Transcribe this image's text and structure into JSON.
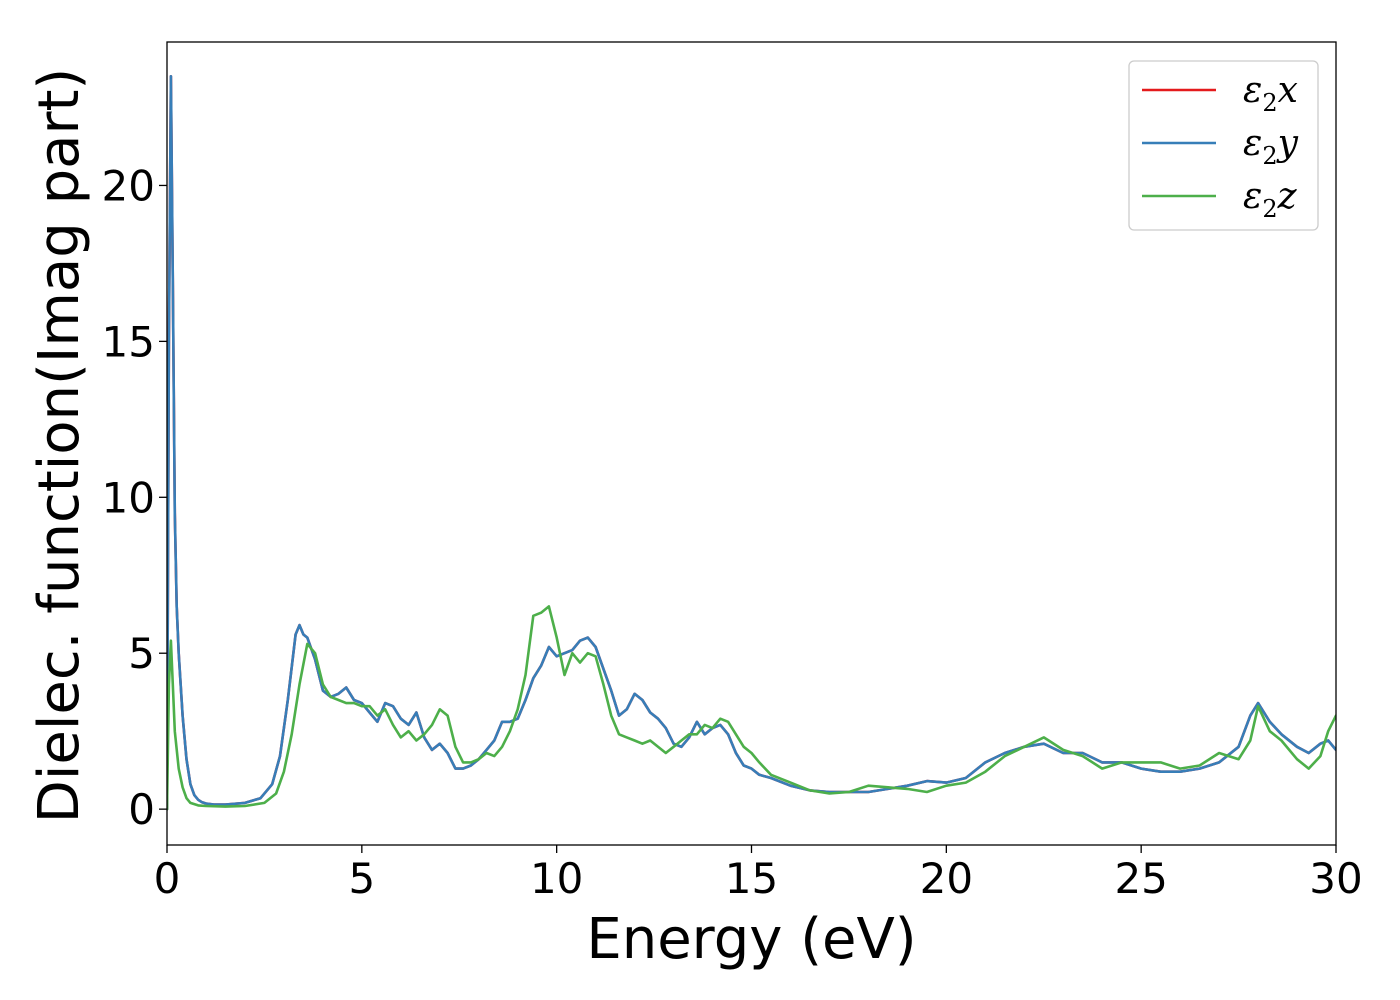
{
  "chart_data": {
    "type": "line",
    "title": "",
    "xlabel": "Energy (eV)",
    "ylabel": "Dielec. function(Imag part)",
    "xlim": [
      0,
      30
    ],
    "ylim": [
      -1.15,
      24.6
    ],
    "xticks": [
      "0",
      "5",
      "10",
      "15",
      "20",
      "25",
      "30"
    ],
    "yticks": [
      "0",
      "5",
      "10",
      "15",
      "20"
    ],
    "grid": false,
    "legend_position": "top-right",
    "series": [
      {
        "name": "x",
        "legend_symbol": "ε",
        "legend_subscript": "2",
        "legend_var": "x",
        "color": "#e41a1c",
        "x": [
          0,
          0.05,
          0.1,
          0.15,
          0.2,
          0.25,
          0.3,
          0.4,
          0.5,
          0.6,
          0.7,
          0.8,
          0.9,
          1.0,
          1.2,
          1.5,
          2.0,
          2.4,
          2.7,
          2.9,
          3.1,
          3.3,
          3.4,
          3.5,
          3.6,
          3.8,
          4.0,
          4.2,
          4.4,
          4.6,
          4.8,
          5.0,
          5.2,
          5.4,
          5.6,
          5.8,
          6.0,
          6.2,
          6.4,
          6.6,
          6.8,
          7.0,
          7.2,
          7.4,
          7.6,
          7.8,
          8.0,
          8.2,
          8.4,
          8.6,
          8.8,
          9.0,
          9.2,
          9.4,
          9.6,
          9.8,
          10.0,
          10.2,
          10.4,
          10.6,
          10.8,
          11.0,
          11.2,
          11.4,
          11.6,
          11.8,
          12.0,
          12.2,
          12.4,
          12.6,
          12.8,
          13.0,
          13.2,
          13.4,
          13.6,
          13.8,
          14.0,
          14.2,
          14.4,
          14.6,
          14.8,
          15.0,
          15.2,
          15.5,
          16.0,
          16.5,
          17.0,
          17.5,
          18.0,
          18.5,
          19.0,
          19.5,
          20.0,
          20.5,
          21.0,
          21.5,
          22.0,
          22.5,
          23.0,
          23.5,
          24.0,
          24.5,
          25.0,
          25.5,
          26.0,
          26.5,
          27.0,
          27.5,
          27.8,
          28.0,
          28.3,
          28.6,
          29.0,
          29.3,
          29.6,
          29.8,
          30.0
        ],
        "y": [
          0,
          15.0,
          23.5,
          17.0,
          9.5,
          6.5,
          5.0,
          3.0,
          1.6,
          0.8,
          0.45,
          0.3,
          0.22,
          0.18,
          0.15,
          0.15,
          0.2,
          0.35,
          0.8,
          1.7,
          3.5,
          5.6,
          5.9,
          5.6,
          5.5,
          4.8,
          3.8,
          3.6,
          3.7,
          3.9,
          3.5,
          3.4,
          3.1,
          2.8,
          3.4,
          3.3,
          2.9,
          2.7,
          3.1,
          2.3,
          1.9,
          2.1,
          1.8,
          1.3,
          1.3,
          1.4,
          1.6,
          1.9,
          2.2,
          2.8,
          2.8,
          2.9,
          3.5,
          4.2,
          4.6,
          5.2,
          4.9,
          5.0,
          5.1,
          5.4,
          5.5,
          5.2,
          4.5,
          3.8,
          3.0,
          3.2,
          3.7,
          3.5,
          3.1,
          2.9,
          2.6,
          2.1,
          2.0,
          2.3,
          2.8,
          2.4,
          2.6,
          2.7,
          2.4,
          1.8,
          1.4,
          1.3,
          1.1,
          1.0,
          0.75,
          0.6,
          0.55,
          0.55,
          0.55,
          0.65,
          0.75,
          0.9,
          0.85,
          1.0,
          1.5,
          1.8,
          2.0,
          2.1,
          1.8,
          1.8,
          1.5,
          1.5,
          1.3,
          1.2,
          1.2,
          1.3,
          1.5,
          2.0,
          3.0,
          3.4,
          2.8,
          2.4,
          2.0,
          1.8,
          2.1,
          2.2,
          1.9
        ],
        "dashed_overlaid": true
      },
      {
        "name": "y",
        "legend_symbol": "ε",
        "legend_subscript": "2",
        "legend_var": "y",
        "color": "#377eb8",
        "x": [
          0,
          0.05,
          0.1,
          0.15,
          0.2,
          0.25,
          0.3,
          0.4,
          0.5,
          0.6,
          0.7,
          0.8,
          0.9,
          1.0,
          1.2,
          1.5,
          2.0,
          2.4,
          2.7,
          2.9,
          3.1,
          3.3,
          3.4,
          3.5,
          3.6,
          3.8,
          4.0,
          4.2,
          4.4,
          4.6,
          4.8,
          5.0,
          5.2,
          5.4,
          5.6,
          5.8,
          6.0,
          6.2,
          6.4,
          6.6,
          6.8,
          7.0,
          7.2,
          7.4,
          7.6,
          7.8,
          8.0,
          8.2,
          8.4,
          8.6,
          8.8,
          9.0,
          9.2,
          9.4,
          9.6,
          9.8,
          10.0,
          10.2,
          10.4,
          10.6,
          10.8,
          11.0,
          11.2,
          11.4,
          11.6,
          11.8,
          12.0,
          12.2,
          12.4,
          12.6,
          12.8,
          13.0,
          13.2,
          13.4,
          13.6,
          13.8,
          14.0,
          14.2,
          14.4,
          14.6,
          14.8,
          15.0,
          15.2,
          15.5,
          16.0,
          16.5,
          17.0,
          17.5,
          18.0,
          18.5,
          19.0,
          19.5,
          20.0,
          20.5,
          21.0,
          21.5,
          22.0,
          22.5,
          23.0,
          23.5,
          24.0,
          24.5,
          25.0,
          25.5,
          26.0,
          26.5,
          27.0,
          27.5,
          27.8,
          28.0,
          28.3,
          28.6,
          29.0,
          29.3,
          29.6,
          29.8,
          30.0
        ],
        "y": [
          0,
          15.0,
          23.5,
          17.0,
          9.5,
          6.5,
          5.0,
          3.0,
          1.6,
          0.8,
          0.45,
          0.3,
          0.22,
          0.18,
          0.15,
          0.15,
          0.2,
          0.35,
          0.8,
          1.7,
          3.5,
          5.6,
          5.9,
          5.6,
          5.5,
          4.8,
          3.8,
          3.6,
          3.7,
          3.9,
          3.5,
          3.4,
          3.1,
          2.8,
          3.4,
          3.3,
          2.9,
          2.7,
          3.1,
          2.3,
          1.9,
          2.1,
          1.8,
          1.3,
          1.3,
          1.4,
          1.6,
          1.9,
          2.2,
          2.8,
          2.8,
          2.9,
          3.5,
          4.2,
          4.6,
          5.2,
          4.9,
          5.0,
          5.1,
          5.4,
          5.5,
          5.2,
          4.5,
          3.8,
          3.0,
          3.2,
          3.7,
          3.5,
          3.1,
          2.9,
          2.6,
          2.1,
          2.0,
          2.3,
          2.8,
          2.4,
          2.6,
          2.7,
          2.4,
          1.8,
          1.4,
          1.3,
          1.1,
          1.0,
          0.75,
          0.6,
          0.55,
          0.55,
          0.55,
          0.65,
          0.75,
          0.9,
          0.85,
          1.0,
          1.5,
          1.8,
          2.0,
          2.1,
          1.8,
          1.8,
          1.5,
          1.5,
          1.3,
          1.2,
          1.2,
          1.3,
          1.5,
          2.0,
          3.0,
          3.4,
          2.8,
          2.4,
          2.0,
          1.8,
          2.1,
          2.2,
          1.9
        ]
      },
      {
        "name": "z",
        "legend_symbol": "ε",
        "legend_subscript": "2",
        "legend_var": "z",
        "color": "#4daf4a",
        "x": [
          0,
          0.05,
          0.1,
          0.15,
          0.2,
          0.3,
          0.4,
          0.5,
          0.6,
          0.8,
          1.0,
          1.5,
          2.0,
          2.5,
          2.8,
          3.0,
          3.2,
          3.4,
          3.6,
          3.8,
          4.0,
          4.2,
          4.4,
          4.6,
          4.8,
          5.0,
          5.2,
          5.4,
          5.6,
          5.8,
          6.0,
          6.2,
          6.4,
          6.6,
          6.8,
          7.0,
          7.2,
          7.4,
          7.6,
          7.8,
          8.0,
          8.2,
          8.4,
          8.6,
          8.8,
          9.0,
          9.2,
          9.4,
          9.6,
          9.8,
          10.0,
          10.2,
          10.4,
          10.6,
          10.8,
          11.0,
          11.2,
          11.4,
          11.6,
          11.8,
          12.0,
          12.2,
          12.4,
          12.6,
          12.8,
          13.0,
          13.2,
          13.4,
          13.6,
          13.8,
          14.0,
          14.2,
          14.4,
          14.6,
          14.8,
          15.0,
          15.2,
          15.5,
          16.0,
          16.5,
          17.0,
          17.5,
          18.0,
          18.5,
          19.0,
          19.5,
          20.0,
          20.5,
          21.0,
          21.5,
          22.0,
          22.5,
          23.0,
          23.5,
          24.0,
          24.5,
          25.0,
          25.5,
          26.0,
          26.5,
          27.0,
          27.5,
          27.8,
          28.0,
          28.3,
          28.6,
          29.0,
          29.3,
          29.6,
          29.8,
          30.0
        ],
        "y": [
          0,
          4.0,
          5.4,
          4.0,
          2.5,
          1.3,
          0.7,
          0.35,
          0.2,
          0.12,
          0.1,
          0.08,
          0.1,
          0.2,
          0.5,
          1.2,
          2.4,
          4.0,
          5.3,
          5.0,
          4.0,
          3.6,
          3.5,
          3.4,
          3.4,
          3.3,
          3.3,
          3.0,
          3.2,
          2.7,
          2.3,
          2.5,
          2.2,
          2.4,
          2.7,
          3.2,
          3.0,
          2.0,
          1.5,
          1.5,
          1.6,
          1.8,
          1.7,
          2.0,
          2.5,
          3.2,
          4.3,
          6.2,
          6.3,
          6.5,
          5.5,
          4.3,
          5.0,
          4.7,
          5.0,
          4.9,
          4.0,
          3.0,
          2.4,
          2.3,
          2.2,
          2.1,
          2.2,
          2.0,
          1.8,
          2.0,
          2.2,
          2.4,
          2.4,
          2.7,
          2.6,
          2.9,
          2.8,
          2.4,
          2.0,
          1.8,
          1.5,
          1.1,
          0.85,
          0.6,
          0.5,
          0.55,
          0.75,
          0.7,
          0.65,
          0.55,
          0.75,
          0.85,
          1.2,
          1.7,
          2.0,
          2.3,
          1.9,
          1.7,
          1.3,
          1.5,
          1.5,
          1.5,
          1.3,
          1.4,
          1.8,
          1.6,
          2.2,
          3.3,
          2.5,
          2.2,
          1.6,
          1.3,
          1.7,
          2.5,
          3.0
        ]
      }
    ]
  }
}
